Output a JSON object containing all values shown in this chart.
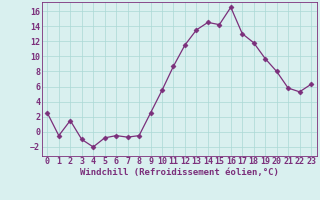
{
  "x": [
    0,
    1,
    2,
    3,
    4,
    5,
    6,
    7,
    8,
    9,
    10,
    11,
    12,
    13,
    14,
    15,
    16,
    17,
    18,
    19,
    20,
    21,
    22,
    23
  ],
  "y": [
    2.5,
    -0.5,
    1.5,
    -1.0,
    -2.0,
    -0.8,
    -0.5,
    -0.7,
    -0.5,
    2.5,
    5.5,
    8.7,
    11.5,
    13.5,
    14.5,
    14.2,
    16.5,
    13.0,
    11.8,
    9.7,
    8.0,
    5.8,
    5.3,
    6.3
  ],
  "line_color": "#7b2f7b",
  "marker": "D",
  "marker_size": 2.5,
  "bg_color": "#d9f0ef",
  "grid_color": "#aad8d5",
  "xlabel": "Windchill (Refroidissement éolien,°C)",
  "xlim": [
    -0.5,
    23.5
  ],
  "ylim": [
    -3.2,
    17.2
  ],
  "yticks": [
    -2,
    0,
    2,
    4,
    6,
    8,
    10,
    12,
    14,
    16
  ],
  "xticks": [
    0,
    1,
    2,
    3,
    4,
    5,
    6,
    7,
    8,
    9,
    10,
    11,
    12,
    13,
    14,
    15,
    16,
    17,
    18,
    19,
    20,
    21,
    22,
    23
  ],
  "xlabel_fontsize": 6.5,
  "tick_fontsize": 6.0
}
